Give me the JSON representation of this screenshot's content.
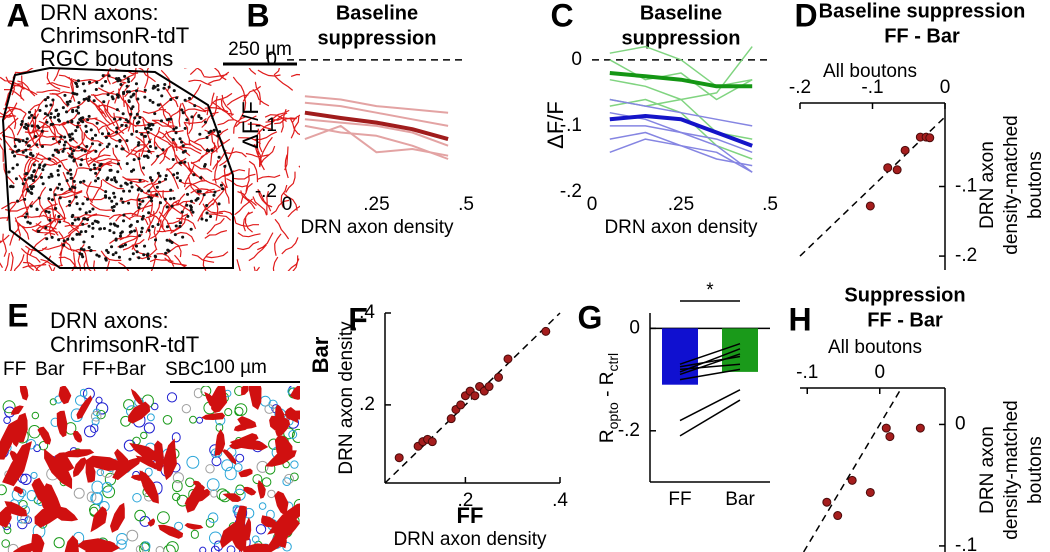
{
  "panel_labels": [
    "A",
    "B",
    "C",
    "D",
    "E",
    "F",
    "G",
    "H"
  ],
  "images": [
    {
      "lines": [
        "DRN axons:",
        "ChrimsonR-tdT",
        "RGC boutons"
      ],
      "line_colors": [
        "#e01b1b",
        "#e01b1b",
        "#000000"
      ],
      "scale_bar": "250 µm"
    },
    {
      "lines": [
        "DRN axons:",
        "ChrimsonR-tdT"
      ],
      "line_colors": [
        "#e01b1b",
        "#e01b1b"
      ],
      "legend": [
        {
          "text": "FF",
          "color": "#1f1fd0"
        },
        {
          "text": "Bar",
          "color": "#1a9a1a"
        },
        {
          "text": "FF+Bar",
          "color": "#2ba6d9"
        },
        {
          "text": "SBC",
          "color": "#a0a0a0"
        }
      ],
      "scale_bar": "100 µm"
    }
  ],
  "chart_data": [
    {
      "type": "line",
      "title": [
        "Baseline",
        "suppression"
      ],
      "xlabel": "DRN axon density",
      "ylabel": "ΔF/F",
      "xlim": [
        0,
        0.5
      ],
      "ylim": [
        -0.2,
        0.03
      ],
      "xticks": [
        0,
        {
          "value": 0.25,
          "label": ".25"
        },
        {
          "value": 0.5,
          "label": ".5"
        }
      ],
      "yticks": [
        0,
        {
          "value": -0.1,
          "label": "-.1"
        },
        {
          "value": -0.2,
          "label": "-.2"
        }
      ],
      "hline": 0,
      "hline_dashed": true,
      "axis_lines": false,
      "x": [
        0.05,
        0.15,
        0.25,
        0.35,
        0.45
      ],
      "series": [
        {
          "color": "#e3a3a3",
          "width": 2,
          "values": [
            -0.055,
            -0.06,
            -0.07,
            -0.075,
            -0.08
          ]
        },
        {
          "color": "#e3a3a3",
          "width": 2,
          "values": [
            -0.065,
            -0.07,
            -0.08,
            -0.09,
            -0.1
          ]
        },
        {
          "color": "#e3a3a3",
          "width": 2,
          "values": [
            -0.09,
            -0.095,
            -0.1,
            -0.11,
            -0.13
          ]
        },
        {
          "color": "#e3a3a3",
          "width": 2,
          "values": [
            -0.1,
            -0.11,
            -0.115,
            -0.13,
            -0.15
          ]
        },
        {
          "color": "#e3a3a3",
          "width": 2,
          "values": [
            -0.12,
            -0.1,
            -0.14,
            -0.135,
            -0.145
          ]
        },
        {
          "color": "#a01c1c",
          "width": 4,
          "values": [
            -0.08,
            -0.088,
            -0.095,
            -0.105,
            -0.12
          ]
        }
      ]
    },
    {
      "type": "line",
      "title": [
        "Baseline",
        "suppression"
      ],
      "xlabel": "DRN axon density",
      "ylabel": "ΔF/F",
      "xlim": [
        0,
        0.5
      ],
      "ylim": [
        -0.2,
        0.03
      ],
      "xticks": [
        0,
        {
          "value": 0.25,
          "label": ".25"
        },
        {
          "value": 0.5,
          "label": ".5"
        }
      ],
      "yticks": [
        0,
        {
          "value": -0.1,
          "label": "-.1"
        },
        {
          "value": -0.2,
          "label": "-.2"
        }
      ],
      "hline": 0,
      "hline_dashed": true,
      "axis_lines": false,
      "x": [
        0.05,
        0.15,
        0.25,
        0.35,
        0.45
      ],
      "series": [
        {
          "color": "#80d480",
          "width": 1.5,
          "values": [
            0.01,
            0.02,
            0.0,
            -0.04,
            -0.03
          ]
        },
        {
          "color": "#80d480",
          "width": 1.5,
          "values": [
            -0.03,
            -0.04,
            -0.06,
            -0.05,
            0.02
          ]
        },
        {
          "color": "#80d480",
          "width": 1.5,
          "values": [
            -0.06,
            -0.07,
            -0.06,
            -0.11,
            -0.12
          ]
        },
        {
          "color": "#80d480",
          "width": 1.5,
          "values": [
            -0.07,
            -0.06,
            -0.08,
            -0.13,
            -0.15
          ]
        },
        {
          "color": "#80d480",
          "width": 1.5,
          "values": [
            0.0,
            -0.03,
            -0.02,
            -0.06,
            -0.03
          ]
        },
        {
          "color": "#8585e2",
          "width": 1.5,
          "values": [
            -0.06,
            -0.07,
            -0.08,
            -0.09,
            -0.1
          ]
        },
        {
          "color": "#8585e2",
          "width": 1.5,
          "values": [
            -0.1,
            -0.1,
            -0.11,
            -0.12,
            -0.14
          ]
        },
        {
          "color": "#8585e2",
          "width": 1.5,
          "values": [
            -0.12,
            -0.11,
            -0.13,
            -0.15,
            -0.16
          ]
        },
        {
          "color": "#8585e2",
          "width": 1.5,
          "values": [
            -0.14,
            -0.12,
            -0.13,
            -0.14,
            -0.17
          ]
        },
        {
          "color": "#8585e2",
          "width": 1.5,
          "values": [
            -0.08,
            -0.09,
            -0.11,
            -0.13,
            -0.17
          ]
        },
        {
          "color": "#149614",
          "width": 4,
          "values": [
            -0.02,
            -0.025,
            -0.03,
            -0.04,
            -0.04
          ]
        },
        {
          "color": "#1414c8",
          "width": 4,
          "values": [
            -0.09,
            -0.085,
            -0.09,
            -0.11,
            -0.13
          ]
        }
      ]
    },
    {
      "type": "scatter",
      "title": [
        "Baseline suppression",
        "FF - Bar"
      ],
      "xlabel": "All boutons",
      "ylabel": [
        "DRN axon",
        "density-matched",
        "boutons"
      ],
      "xaxis": "top",
      "yaxis": "right",
      "xlim": [
        -0.2,
        0
      ],
      "ylim": [
        -0.22,
        0.02
      ],
      "xticks": [
        {
          "value": -0.2,
          "label": "-.2"
        },
        {
          "value": -0.1,
          "label": "-.1"
        },
        0
      ],
      "yticks": [
        {
          "value": -0.1,
          "label": "-.1"
        },
        {
          "value": -0.2,
          "label": "-.2"
        }
      ],
      "identity": true,
      "axis_lines": true,
      "color": "#a51d1d",
      "x": [
        -0.103,
        -0.079,
        -0.066,
        -0.055,
        -0.034,
        -0.026,
        -0.021
      ],
      "y": [
        -0.128,
        -0.073,
        -0.076,
        -0.048,
        -0.029,
        -0.029,
        -0.03
      ]
    },
    {
      "type": "scatter",
      "xlabel": "DRN axon density",
      "ylabel": "DRN axon density",
      "xlabel_highlight": {
        "text": "FF",
        "color": "#1f1fd0"
      },
      "ylabel_highlight": {
        "text": "Bar",
        "color": "#1a9a1a"
      },
      "xlim": [
        0.03,
        0.4
      ],
      "ylim": [
        0.03,
        0.4
      ],
      "xticks": [
        {
          "value": 0.2,
          "label": ".2"
        },
        {
          "value": 0.4,
          "label": ".4"
        }
      ],
      "yticks": [
        {
          "value": 0.2,
          "label": ".2"
        },
        {
          "value": 0.4,
          "label": ".4"
        }
      ],
      "identity": true,
      "axis_lines": true,
      "color": "#a51d1d",
      "x": [
        0.06,
        0.1,
        0.11,
        0.12,
        0.13,
        0.17,
        0.18,
        0.19,
        0.2,
        0.21,
        0.22,
        0.23,
        0.24,
        0.25,
        0.27,
        0.29,
        0.37
      ],
      "y": [
        0.085,
        0.11,
        0.12,
        0.125,
        0.12,
        0.17,
        0.19,
        0.2,
        0.22,
        0.23,
        0.22,
        0.24,
        0.23,
        0.24,
        0.26,
        0.3,
        0.36
      ]
    },
    {
      "type": "bar",
      "ylabel": [
        "R",
        "opto",
        " - R",
        "ctrl"
      ],
      "categories": [
        "FF",
        "Bar"
      ],
      "values": [
        -0.11,
        -0.085
      ],
      "colors": [
        "#1010d0",
        "#1a9a1a"
      ],
      "ylim": [
        -0.3,
        0.03
      ],
      "yticks": [
        0,
        {
          "value": -0.2,
          "label": "-.2"
        }
      ],
      "hline": 0,
      "hline_dashed": false,
      "axis_lines": true,
      "annotation": "*",
      "pairs": [
        [
          -0.21,
          -0.14
        ],
        [
          -0.18,
          -0.12
        ],
        [
          -0.09,
          -0.05
        ],
        [
          -0.085,
          -0.04
        ],
        [
          -0.08,
          -0.07
        ],
        [
          -0.075,
          -0.055
        ],
        [
          -0.07,
          -0.03
        ],
        [
          -0.1,
          -0.08
        ]
      ]
    },
    {
      "type": "scatter",
      "title": [
        "Suppression",
        "FF - Bar"
      ],
      "xlabel": "All boutons",
      "ylabel": [
        "DRN axon",
        "density-matched",
        "boutons"
      ],
      "xaxis": "top",
      "yaxis": "right",
      "xlim": [
        -0.11,
        0.09
      ],
      "ylim": [
        -0.105,
        0.03
      ],
      "xticks": [
        {
          "value": -0.1,
          "label": "-.1"
        },
        0
      ],
      "yticks": [
        0,
        {
          "value": -0.1,
          "label": "-.1"
        }
      ],
      "identity": true,
      "axis_lines": true,
      "color": "#a51d1d",
      "x": [
        -0.073,
        -0.058,
        -0.038,
        -0.013,
        0.009,
        0.014,
        0.056
      ],
      "y": [
        -0.064,
        -0.075,
        -0.046,
        -0.056,
        -0.003,
        -0.01,
        -0.003
      ]
    }
  ]
}
